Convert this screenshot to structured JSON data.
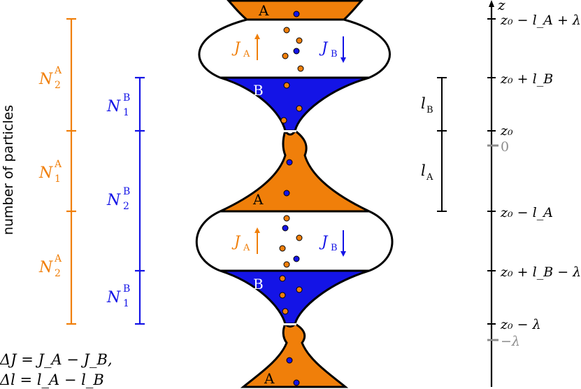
{
  "colors": {
    "orange": "#f07f0a",
    "blue": "#1414e6",
    "black": "#000000",
    "gray": "#8c8c8c"
  },
  "left_axis": {
    "label": "number of particles",
    "orange_labels": [
      {
        "base": "N",
        "sup": "A",
        "sub": "2"
      },
      {
        "base": "N",
        "sup": "A",
        "sub": "1"
      },
      {
        "base": "N",
        "sup": "A",
        "sub": "2"
      }
    ],
    "blue_labels": [
      {
        "base": "N",
        "sup": "B",
        "sub": "1"
      },
      {
        "base": "N",
        "sup": "B",
        "sub": "2"
      },
      {
        "base": "N",
        "sup": "B",
        "sub": "1"
      }
    ]
  },
  "tube": {
    "region_labels": [
      "A",
      "B",
      "A",
      "B",
      "A"
    ],
    "flux_labels": [
      {
        "base": "J",
        "sub": "A"
      },
      {
        "base": "J",
        "sub": "B"
      },
      {
        "base": "J",
        "sub": "A"
      },
      {
        "base": "J",
        "sub": "B"
      }
    ]
  },
  "lengths": {
    "l_B": {
      "base": "l",
      "sub": "B"
    },
    "l_A": {
      "base": "l",
      "sub": "A"
    }
  },
  "z_axis": {
    "axis_label": "z",
    "ticks": [
      {
        "text": "z₀ − l_A + λ"
      },
      {
        "text": "z₀ + l_B"
      },
      {
        "text": "z₀"
      },
      {
        "text": "0"
      },
      {
        "text": "z₀ − l_A"
      },
      {
        "text": "z₀ + l_B − λ"
      },
      {
        "text": "z₀ − λ"
      },
      {
        "text": "−λ"
      }
    ]
  },
  "equations": {
    "line1": "ΔJ = J_A − J_B,",
    "line2": "Δl = l_A − l_B"
  }
}
